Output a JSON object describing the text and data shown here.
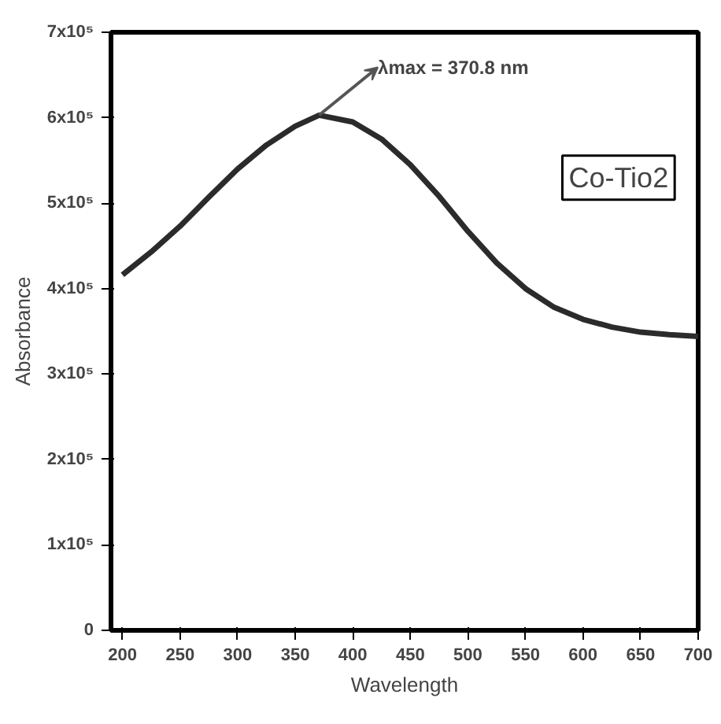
{
  "chart_data": {
    "type": "line",
    "xlabel": "Wavelength",
    "ylabel": "Absorbance",
    "x": [
      200,
      225,
      250,
      275,
      300,
      325,
      350,
      370.8,
      400,
      425,
      450,
      475,
      500,
      525,
      550,
      575,
      600,
      625,
      650,
      675,
      700
    ],
    "series": [
      {
        "color": "#2b2b2b",
        "values": [
          416000,
          443000,
          473000,
          507000,
          540000,
          568000,
          590000,
          603000,
          595000,
          575000,
          545000,
          508000,
          467000,
          430000,
          400000,
          378000,
          364000,
          355000,
          349000,
          346000,
          344000
        ]
      }
    ],
    "xlim": [
      190,
      700
    ],
    "ylim": [
      0,
      700000
    ],
    "xticks": [
      200,
      250,
      300,
      350,
      400,
      450,
      500,
      550,
      600,
      650,
      700
    ],
    "yticks": [
      0,
      {
        "value": 100000,
        "label": "1x10⁵"
      },
      {
        "value": 200000,
        "label": "2x10⁵"
      },
      {
        "value": 300000,
        "label": "3x10⁵"
      },
      {
        "value": 400000,
        "label": "4x10⁵"
      },
      {
        "value": 500000,
        "label": "5x10⁵"
      },
      {
        "value": 600000,
        "label": "6x10⁵"
      },
      {
        "value": 700000,
        "label": "7x10⁵"
      }
    ],
    "annotations": [
      {
        "text": "λmax = 370.8 nm",
        "x": 370.8,
        "y": 603000
      },
      "Co-Tio2"
    ],
    "grid": false,
    "marker": "none",
    "line_style": "solid"
  }
}
